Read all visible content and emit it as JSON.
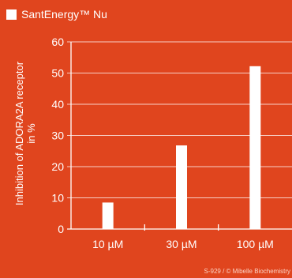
{
  "legend": {
    "label": "SantEnergy™ Nu",
    "swatch_color": "#ffffff"
  },
  "credit": "S-929 / © Mibelle Biochemistry",
  "colors": {
    "background": "#e0451e",
    "bars": "#ffffff",
    "grid": "#ffffff"
  },
  "chart_data": {
    "type": "bar",
    "title": "",
    "xlabel": "",
    "ylabel": "Inhibition of ADORA2A receptor in %",
    "categories": [
      "10 µM",
      "30 µM",
      "100 µM"
    ],
    "series": [
      {
        "name": "SantEnergy™ Nu",
        "values": [
          8.5,
          26.8,
          52.2
        ]
      }
    ],
    "ylim": [
      0,
      60
    ],
    "yticks": [
      0,
      10,
      20,
      30,
      40,
      50,
      60
    ],
    "grid": true,
    "legend": "top-left"
  }
}
